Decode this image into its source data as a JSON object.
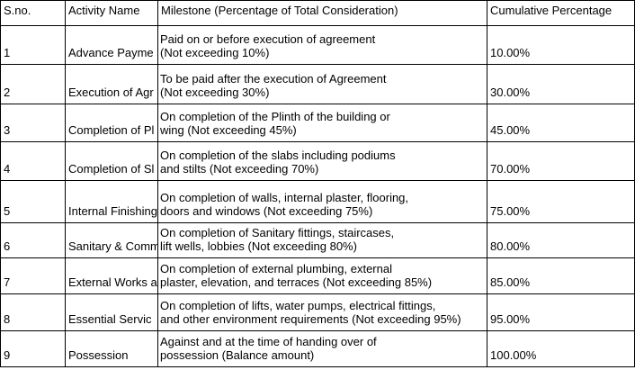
{
  "table": {
    "header": [
      "S.no.",
      "Activity Name",
      "Milestone (Percentage of Total Consideration)",
      "Cumulative Percentage"
    ],
    "rows": [
      [
        "1",
        "Advance Payme",
        [
          "Paid on or before execution of agreement",
          " (Not exceeding 10%)"
        ],
        "10.00%"
      ],
      [
        "2",
        "Execution of Agr",
        [
          "To be paid after the execution of Agreement",
          " (Not exceeding 30%)"
        ],
        "30.00%"
      ],
      [
        "3",
        "Completion of Pl",
        [
          "On completion of the Plinth of the building or",
          " wing (Not exceeding 45%)"
        ],
        "45.00%"
      ],
      [
        "4",
        "Completion of Sl",
        [
          "On completion of the slabs including podiums",
          " and stilts (Not exceeding 70%)"
        ],
        "70.00%"
      ],
      [
        "5",
        "Internal Finishing",
        [
          "On completion of walls, internal plaster, flooring,",
          "doors and windows (Not exceeding 75%)"
        ],
        "75.00%"
      ],
      [
        "6",
        "Sanitary & Comm",
        [
          "On completion of Sanitary fittings, staircases,",
          " lift wells, lobbies (Not exceeding 80%)"
        ],
        "80.00%"
      ],
      [
        "7",
        "External Works a",
        [
          "On completion of external plumbing, external",
          " plaster, elevation, and terraces (Not exceeding 85%)"
        ],
        "85.00%"
      ],
      [
        "8",
        "Essential Servic",
        [
          "On completion of lifts, water pumps, electrical fittings,",
          " and other environment requirements (Not exceeding 95%)"
        ],
        "95.00%"
      ],
      [
        "9",
        "Possession",
        [
          "Against and at the time of handing over of",
          "possession (Balance amount)"
        ],
        "100.00%"
      ]
    ]
  }
}
